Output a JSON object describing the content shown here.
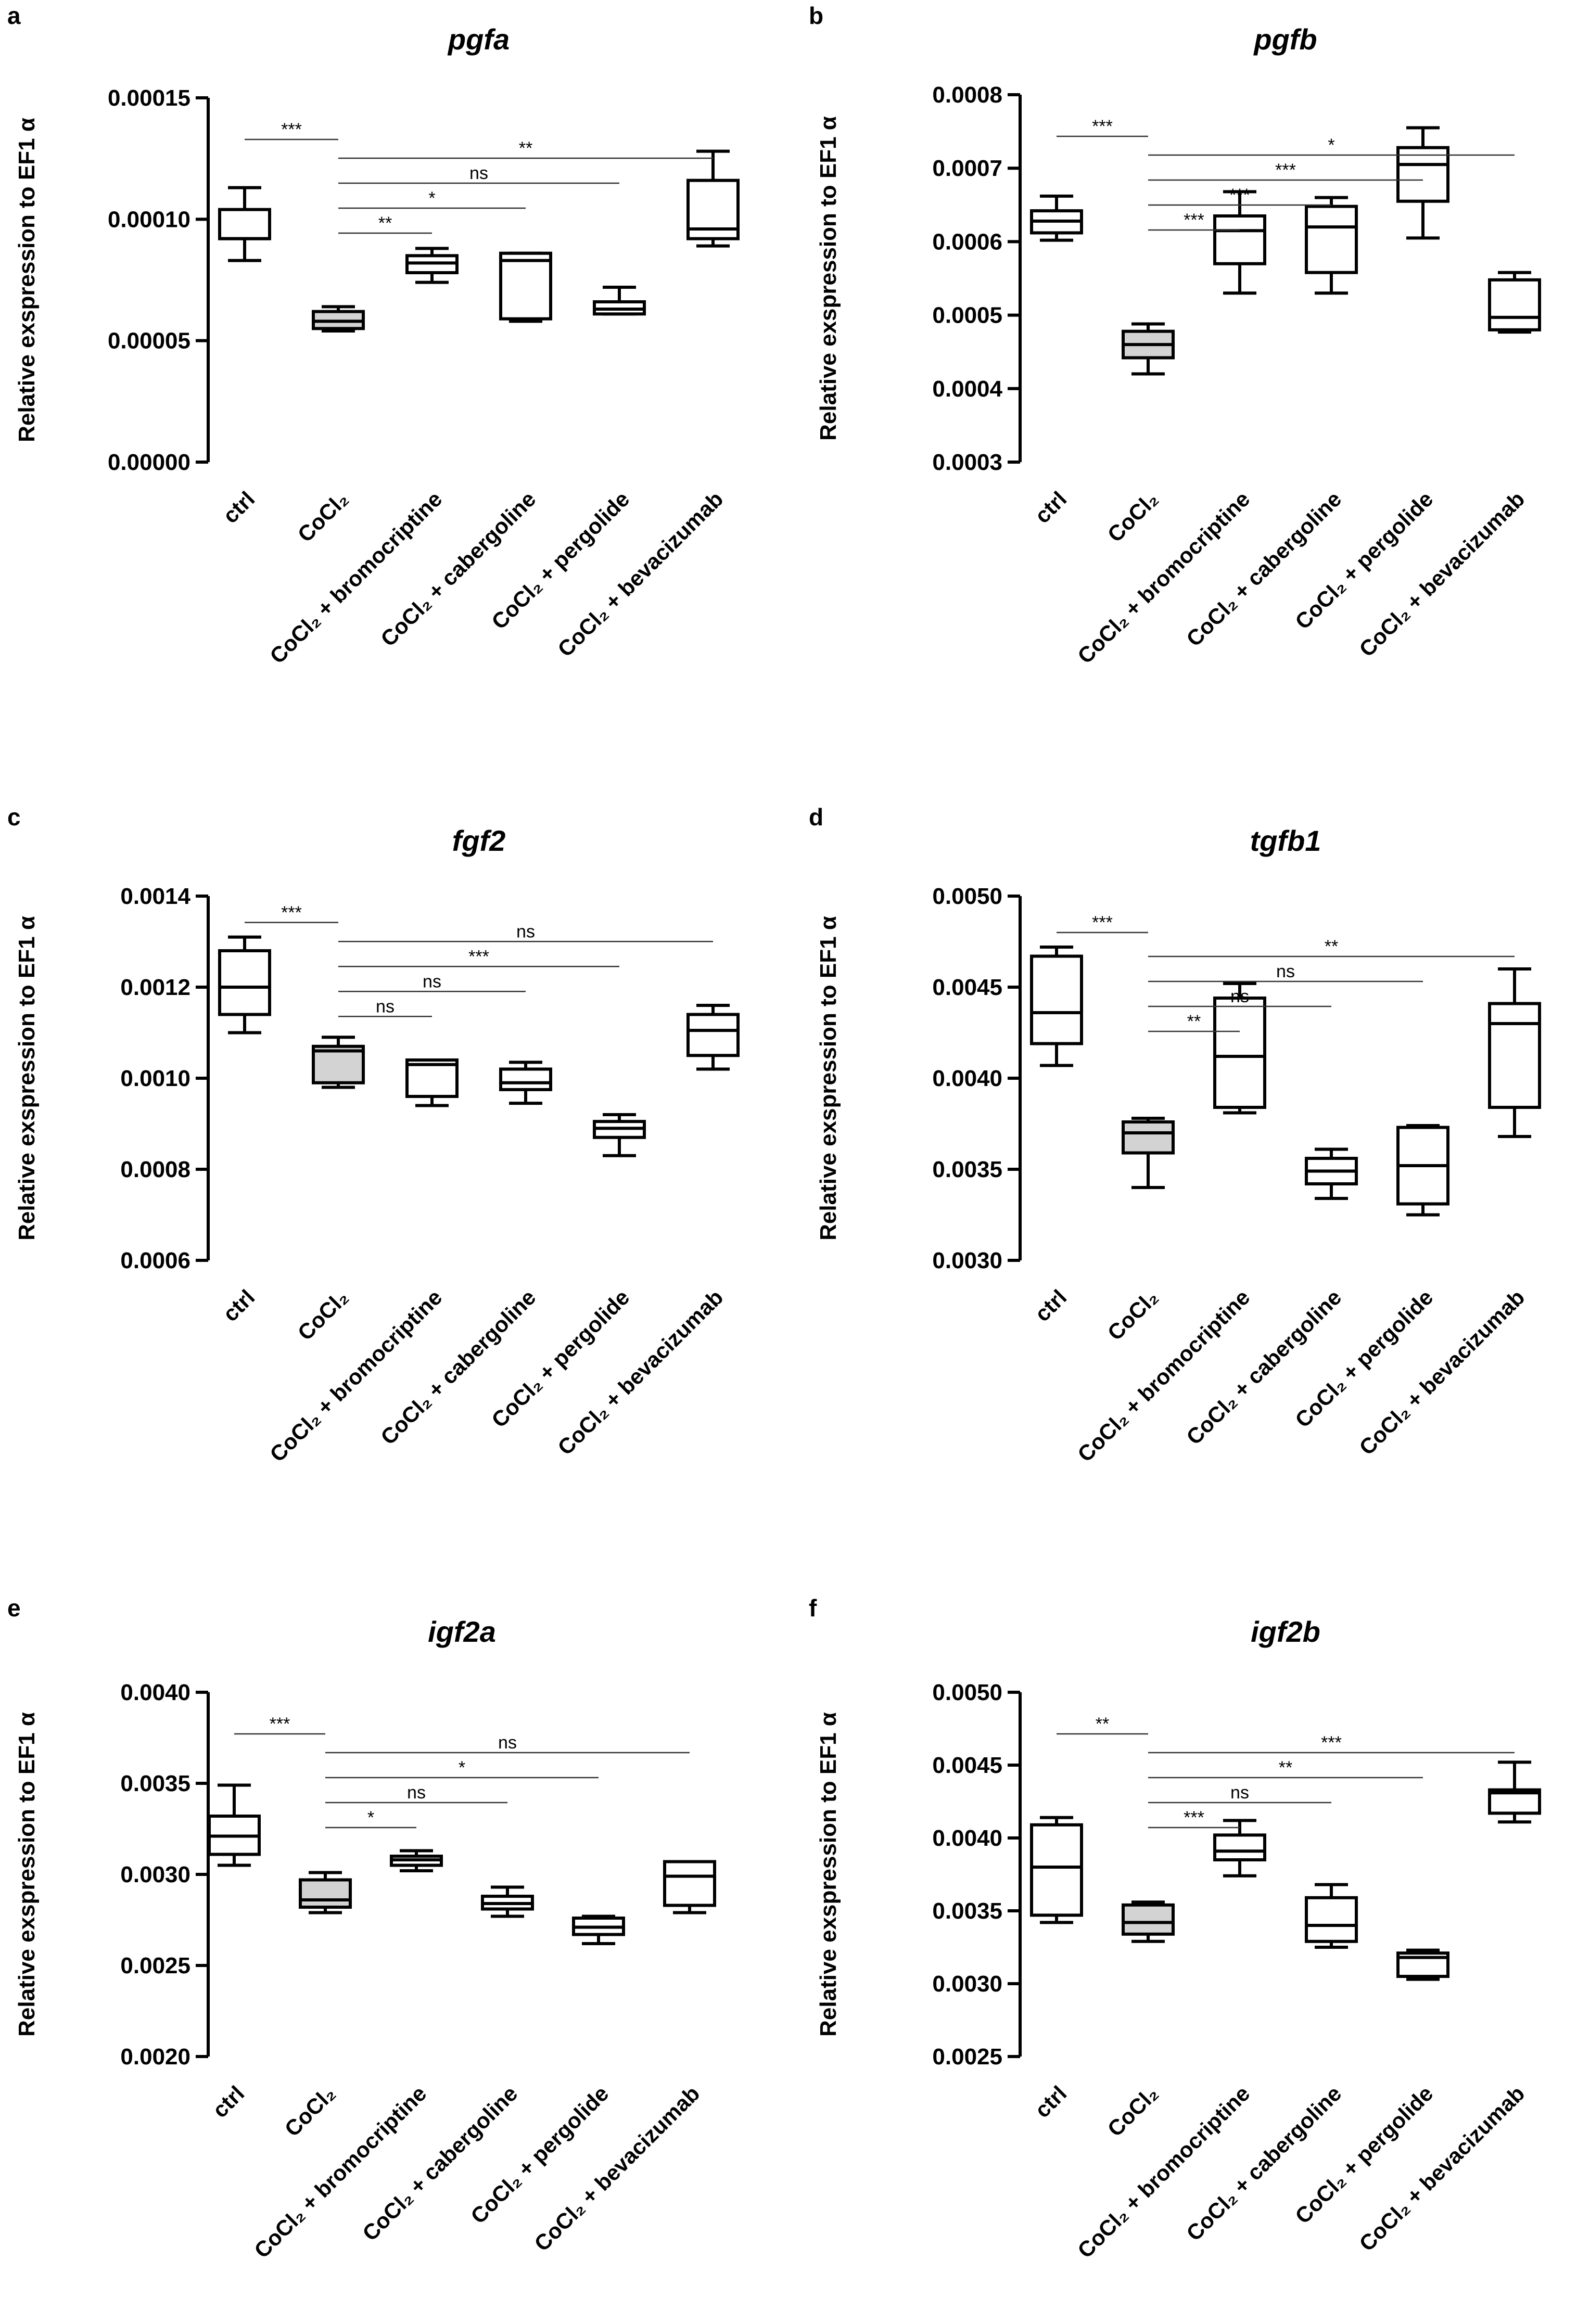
{
  "panels": [
    {
      "label": "a",
      "ylabel": "Relative exspression to EF1 α",
      "x_tick_labels": [
        "ctrl",
        "CoCl₂",
        "CoCl₂ + bromocriptine",
        "CoCl₂ + cabergoline",
        "CoCl₂ + pergolide",
        "CoCl₂ + bevacizumab"
      ],
      "y_tick_labels": [
        "0.00000",
        "0.00005",
        "0.00010",
        "0.00015"
      ]
    },
    {
      "label": "b",
      "ylabel": "Relative exspression to EF1 α",
      "x_tick_labels": [
        "ctrl",
        "CoCl₂",
        "CoCl₂ + bromocriptine",
        "CoCl₂ + cabergoline",
        "CoCl₂ + pergolide",
        "CoCl₂ + bevacizumab"
      ],
      "y_tick_labels": [
        "0.0003",
        "0.0004",
        "0.0005",
        "0.0006",
        "0.0007",
        "0.0008"
      ]
    },
    {
      "label": "c",
      "ylabel": "Relative exspression to EF1 α",
      "x_tick_labels": [
        "ctrl",
        "CoCl₂",
        "CoCl₂ + bromocriptine",
        "CoCl₂ + cabergoline",
        "CoCl₂ + pergolide",
        "CoCl₂ + bevacizumab"
      ],
      "y_tick_labels": [
        "0.0006",
        "0.0008",
        "0.0010",
        "0.0012",
        "0.0014"
      ]
    },
    {
      "label": "d",
      "ylabel": "Relative exspression to EF1 α",
      "x_tick_labels": [
        "ctrl",
        "CoCl₂",
        "CoCl₂ + bromocriptine",
        "CoCl₂ + cabergoline",
        "CoCl₂ + pergolide",
        "CoCl₂ + bevacizumab"
      ],
      "y_tick_labels": [
        "0.0030",
        "0.0035",
        "0.0040",
        "0.0045",
        "0.0050"
      ]
    },
    {
      "label": "e",
      "ylabel": "Relative exspression to EF1 α",
      "x_tick_labels": [
        "ctrl",
        "CoCl₂",
        "CoCl₂ + bromocriptine",
        "CoCl₂ + cabergoline",
        "CoCl₂ + pergolide",
        "CoCl₂ + bevacizumab"
      ],
      "y_tick_labels": [
        "0.0020",
        "0.0025",
        "0.0030",
        "0.0035",
        "0.0040"
      ]
    },
    {
      "label": "f",
      "ylabel": "Relative exspression to EF1 α",
      "x_tick_labels": [
        "ctrl",
        "CoCl₂",
        "CoCl₂ + bromocriptine",
        "CoCl₂ + cabergoline",
        "CoCl₂ + pergolide",
        "CoCl₂ + bevacizumab"
      ],
      "y_tick_labels": [
        "0.0025",
        "0.0030",
        "0.0035",
        "0.0040",
        "0.0045",
        "0.0050"
      ]
    }
  ],
  "colors": {
    "line": "#000000",
    "box_fill": "#ffffff",
    "box_fill_cocl2": "#d3d3d3"
  },
  "chart_data": [
    {
      "type": "box",
      "title": "pgfa",
      "ylim": [
        0,
        0.00015
      ],
      "categories": [
        "ctrl",
        "CoCl2",
        "CoCl2 + bromocriptine",
        "CoCl2 + cabergoline",
        "CoCl2 + pergolide",
        "CoCl2 + bevacizumab"
      ],
      "boxes": [
        {
          "min": 8.3e-05,
          "q1": 9.2e-05,
          "median": 9.2e-05,
          "q3": 0.000104,
          "max": 0.000113
        },
        {
          "min": 5.4e-05,
          "q1": 5.5e-05,
          "median": 5.8e-05,
          "q3": 6.2e-05,
          "max": 6.4e-05
        },
        {
          "min": 7.4e-05,
          "q1": 7.8e-05,
          "median": 8.2e-05,
          "q3": 8.5e-05,
          "max": 8.8e-05
        },
        {
          "min": 5.8e-05,
          "q1": 5.9e-05,
          "median": 8.3e-05,
          "q3": 8.6e-05,
          "max": 8.6e-05
        },
        {
          "min": 6.1e-05,
          "q1": 6.1e-05,
          "median": 6.3e-05,
          "q3": 6.6e-05,
          "max": 7.2e-05
        },
        {
          "min": 8.9e-05,
          "q1": 9.2e-05,
          "median": 9.6e-05,
          "q3": 0.000116,
          "max": 0.000128
        }
      ],
      "comparisons": [
        {
          "from": 0,
          "to": 1,
          "label": "***"
        },
        {
          "from": 1,
          "to": 2,
          "label": "**"
        },
        {
          "from": 1,
          "to": 3,
          "label": "*"
        },
        {
          "from": 1,
          "to": 4,
          "label": "ns"
        },
        {
          "from": 1,
          "to": 5,
          "label": "**"
        }
      ]
    },
    {
      "type": "box",
      "title": "pgfb",
      "ylim": [
        0.0003,
        0.0008
      ],
      "categories": [
        "ctrl",
        "CoCl2",
        "CoCl2 + bromocriptine",
        "CoCl2 + cabergoline",
        "CoCl2 + pergolide",
        "CoCl2 + bevacizumab"
      ],
      "boxes": [
        {
          "min": 0.000602,
          "q1": 0.000612,
          "median": 0.000628,
          "q3": 0.000642,
          "max": 0.000662
        },
        {
          "min": 0.00042,
          "q1": 0.000442,
          "median": 0.00046,
          "q3": 0.000478,
          "max": 0.000488
        },
        {
          "min": 0.00053,
          "q1": 0.00057,
          "median": 0.000615,
          "q3": 0.000635,
          "max": 0.000668
        },
        {
          "min": 0.00053,
          "q1": 0.000558,
          "median": 0.00062,
          "q3": 0.000648,
          "max": 0.00066
        },
        {
          "min": 0.000605,
          "q1": 0.000655,
          "median": 0.000705,
          "q3": 0.000728,
          "max": 0.000755
        },
        {
          "min": 0.000477,
          "q1": 0.00048,
          "median": 0.000497,
          "q3": 0.000548,
          "max": 0.000558
        }
      ],
      "comparisons": [
        {
          "from": 0,
          "to": 1,
          "label": "***"
        },
        {
          "from": 1,
          "to": 2,
          "label": "***"
        },
        {
          "from": 1,
          "to": 3,
          "label": "***"
        },
        {
          "from": 1,
          "to": 4,
          "label": "***"
        },
        {
          "from": 1,
          "to": 5,
          "label": "*"
        }
      ]
    },
    {
      "type": "box",
      "title": "fgf2",
      "ylim": [
        0.0006,
        0.0014
      ],
      "categories": [
        "ctrl",
        "CoCl2",
        "CoCl2 + bromocriptine",
        "CoCl2 + cabergoline",
        "CoCl2 + pergolide",
        "CoCl2 + bevacizumab"
      ],
      "boxes": [
        {
          "min": 0.0011,
          "q1": 0.00114,
          "median": 0.0012,
          "q3": 0.00128,
          "max": 0.00131
        },
        {
          "min": 0.00098,
          "q1": 0.00099,
          "median": 0.00106,
          "q3": 0.00107,
          "max": 0.00109
        },
        {
          "min": 0.00094,
          "q1": 0.00096,
          "median": 0.00103,
          "q3": 0.00104,
          "max": 0.00104
        },
        {
          "min": 0.000945,
          "q1": 0.000975,
          "median": 0.00099,
          "q3": 0.00102,
          "max": 0.001035
        },
        {
          "min": 0.00083,
          "q1": 0.00087,
          "median": 0.00089,
          "q3": 0.000905,
          "max": 0.00092
        },
        {
          "min": 0.00102,
          "q1": 0.00105,
          "median": 0.001105,
          "q3": 0.00114,
          "max": 0.00116
        }
      ],
      "comparisons": [
        {
          "from": 0,
          "to": 1,
          "label": "***"
        },
        {
          "from": 1,
          "to": 2,
          "label": "ns"
        },
        {
          "from": 1,
          "to": 3,
          "label": "ns"
        },
        {
          "from": 1,
          "to": 4,
          "label": "***"
        },
        {
          "from": 1,
          "to": 5,
          "label": "ns"
        }
      ]
    },
    {
      "type": "box",
      "title": "tgfb1",
      "ylim": [
        0.003,
        0.005
      ],
      "categories": [
        "ctrl",
        "CoCl2",
        "CoCl2 + bromocriptine",
        "CoCl2 + cabergoline",
        "CoCl2 + pergolide",
        "CoCl2 + bevacizumab"
      ],
      "boxes": [
        {
          "min": 0.00407,
          "q1": 0.00419,
          "median": 0.00436,
          "q3": 0.00467,
          "max": 0.00472
        },
        {
          "min": 0.0034,
          "q1": 0.00359,
          "median": 0.0037,
          "q3": 0.00376,
          "max": 0.00378
        },
        {
          "min": 0.00381,
          "q1": 0.00384,
          "median": 0.00412,
          "q3": 0.00444,
          "max": 0.00452
        },
        {
          "min": 0.00334,
          "q1": 0.00342,
          "median": 0.00349,
          "q3": 0.00356,
          "max": 0.00361
        },
        {
          "min": 0.00325,
          "q1": 0.00331,
          "median": 0.00352,
          "q3": 0.00373,
          "max": 0.00374
        },
        {
          "min": 0.00368,
          "q1": 0.00384,
          "median": 0.0043,
          "q3": 0.00441,
          "max": 0.0046
        }
      ],
      "comparisons": [
        {
          "from": 0,
          "to": 1,
          "label": "***"
        },
        {
          "from": 1,
          "to": 2,
          "label": "**"
        },
        {
          "from": 1,
          "to": 3,
          "label": "ns"
        },
        {
          "from": 1,
          "to": 4,
          "label": "ns"
        },
        {
          "from": 1,
          "to": 5,
          "label": "**"
        }
      ]
    },
    {
      "type": "box",
      "title": "igf2a",
      "ylim": [
        0.002,
        0.004
      ],
      "categories": [
        "ctrl",
        "CoCl2",
        "CoCl2 + bromocriptine",
        "CoCl2 + cabergoline",
        "CoCl2 + pergolide",
        "CoCl2 + bevacizumab"
      ],
      "boxes": [
        {
          "min": 0.00305,
          "q1": 0.00311,
          "median": 0.00321,
          "q3": 0.00332,
          "max": 0.00349
        },
        {
          "min": 0.00279,
          "q1": 0.00282,
          "median": 0.00286,
          "q3": 0.00297,
          "max": 0.00301
        },
        {
          "min": 0.00302,
          "q1": 0.00305,
          "median": 0.00308,
          "q3": 0.0031,
          "max": 0.00313
        },
        {
          "min": 0.00277,
          "q1": 0.00281,
          "median": 0.00284,
          "q3": 0.00288,
          "max": 0.00293
        },
        {
          "min": 0.00262,
          "q1": 0.00267,
          "median": 0.00271,
          "q3": 0.00276,
          "max": 0.00277
        },
        {
          "min": 0.00279,
          "q1": 0.00283,
          "median": 0.00299,
          "q3": 0.00307,
          "max": 0.00307
        }
      ],
      "comparisons": [
        {
          "from": 0,
          "to": 1,
          "label": "***"
        },
        {
          "from": 1,
          "to": 2,
          "label": "*"
        },
        {
          "from": 1,
          "to": 3,
          "label": "ns"
        },
        {
          "from": 1,
          "to": 4,
          "label": "*"
        },
        {
          "from": 1,
          "to": 5,
          "label": "ns"
        }
      ]
    },
    {
      "type": "box",
      "title": "igf2b",
      "ylim": [
        0.0025,
        0.005
      ],
      "categories": [
        "ctrl",
        "CoCl2",
        "CoCl2 + bromocriptine",
        "CoCl2 + cabergoline",
        "CoCl2 + pergolide",
        "CoCl2 + bevacizumab"
      ],
      "boxes": [
        {
          "min": 0.00342,
          "q1": 0.00347,
          "median": 0.0038,
          "q3": 0.00409,
          "max": 0.00414
        },
        {
          "min": 0.00329,
          "q1": 0.00334,
          "median": 0.00342,
          "q3": 0.00354,
          "max": 0.00356
        },
        {
          "min": 0.00374,
          "q1": 0.00385,
          "median": 0.00391,
          "q3": 0.00402,
          "max": 0.00412
        },
        {
          "min": 0.00325,
          "q1": 0.00329,
          "median": 0.0034,
          "q3": 0.00359,
          "max": 0.00368
        },
        {
          "min": 0.00303,
          "q1": 0.00305,
          "median": 0.00318,
          "q3": 0.00321,
          "max": 0.00323
        },
        {
          "min": 0.00411,
          "q1": 0.00417,
          "median": 0.00431,
          "q3": 0.00433,
          "max": 0.00452
        }
      ],
      "comparisons": [
        {
          "from": 0,
          "to": 1,
          "label": "**"
        },
        {
          "from": 1,
          "to": 2,
          "label": "***"
        },
        {
          "from": 1,
          "to": 3,
          "label": "ns"
        },
        {
          "from": 1,
          "to": 4,
          "label": "**"
        },
        {
          "from": 1,
          "to": 5,
          "label": "***"
        }
      ]
    }
  ]
}
